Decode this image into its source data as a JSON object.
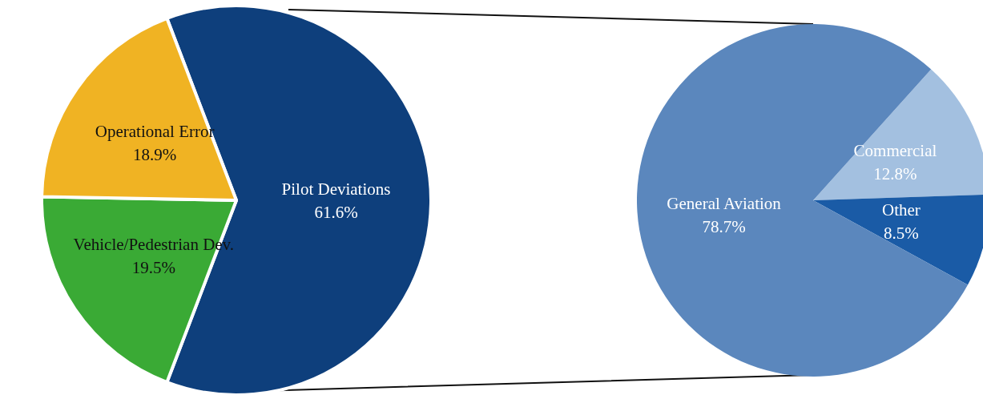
{
  "chart_data": [
    {
      "type": "pie",
      "categories": [
        "Pilot Deviations",
        "Vehicle/Pedestrian Dev.",
        "Operational Error"
      ],
      "values": [
        61.6,
        19.5,
        18.9
      ],
      "colors": [
        "#0e3f7c",
        "#3aaa35",
        "#f0b323"
      ],
      "value_labels": [
        "61.6%",
        "19.5%",
        "18.9%"
      ]
    },
    {
      "type": "pie",
      "categories": [
        "Commercial",
        "Other",
        "General Aviation"
      ],
      "values": [
        12.8,
        8.5,
        78.7
      ],
      "colors": [
        "#a3c0e0",
        "#1a5ba6",
        "#5b87bd"
      ],
      "value_labels": [
        "12.8%",
        "8.5%",
        "78.7%"
      ]
    }
  ]
}
